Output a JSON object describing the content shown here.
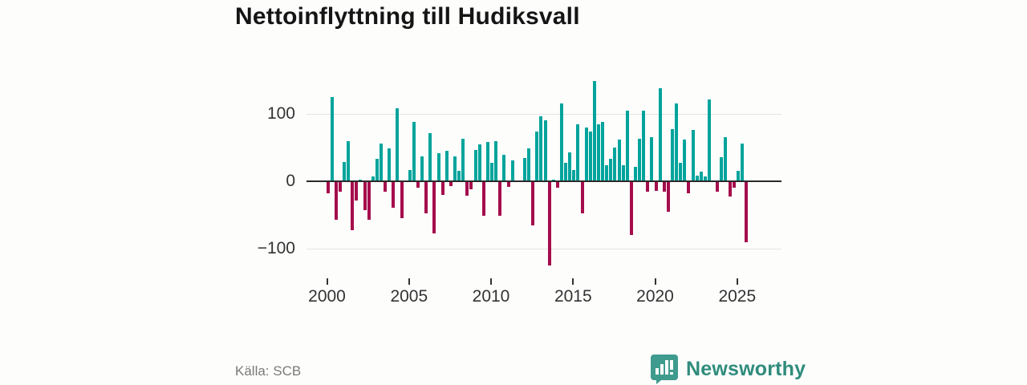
{
  "title": "Nettoinflyttning till Hudiksvall",
  "source": "Källa: SCB",
  "logo": {
    "text": "Newsworthy",
    "icon": "newsworthy-chart-bubble-icon"
  },
  "colors": {
    "positive_bar": "#00a49c",
    "negative_bar": "#a50d4c",
    "axis": "#2b2b2b",
    "gridline": "#e3e3e1",
    "labels": "#333333",
    "title": "#151515",
    "source_text": "#7a7a7a",
    "logo_icon": "#3e9b8d",
    "logo_text": "#2f8c7c"
  },
  "chart_data": {
    "type": "bar",
    "title": "Nettoinflyttning till Hudiksvall",
    "frequency": "quarterly",
    "x_domain": [
      "2000 Q1",
      "2025 Q3"
    ],
    "x_tick_labels": [
      "2000",
      "2005",
      "2010",
      "2015",
      "2020",
      "2025"
    ],
    "y_tick_labels": [
      "100",
      "0",
      "−100"
    ],
    "y_ticks": [
      100,
      0,
      -100
    ],
    "ylim": [
      -130,
      155
    ],
    "grid": "horizontal",
    "legend": "none",
    "series_note": "positive quarters teal, negative quarters dark red",
    "values": [
      -18,
      125,
      -57,
      -15,
      29,
      59,
      -73,
      -29,
      2,
      -43,
      -57,
      7,
      33,
      56,
      -15,
      49,
      -39,
      108,
      -55,
      0,
      17,
      88,
      -10,
      37,
      -47,
      71,
      -77,
      42,
      -20,
      45,
      -7,
      37,
      16,
      63,
      -21,
      -12,
      47,
      55,
      -51,
      58,
      27,
      59,
      -51,
      39,
      -8,
      31,
      0,
      0,
      35,
      49,
      -65,
      74,
      96,
      91,
      -125,
      2,
      -9,
      115,
      28,
      43,
      17,
      85,
      -48,
      80,
      74,
      149,
      85,
      88,
      24,
      33,
      50,
      62,
      24,
      105,
      -80,
      21,
      63,
      105,
      -16,
      65,
      -14,
      138,
      -15,
      -45,
      77,
      116,
      28,
      62,
      -18,
      76,
      8,
      14,
      7,
      121,
      0,
      -15,
      36,
      66,
      -22,
      -9,
      15,
      56,
      -91
    ]
  }
}
